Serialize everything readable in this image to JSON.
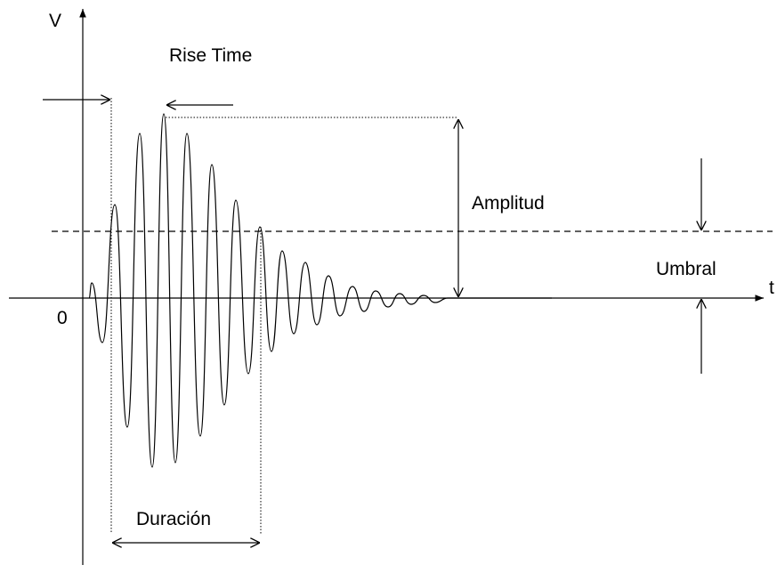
{
  "labels": {
    "v_axis": "V",
    "t_axis": "t",
    "origin": "0",
    "rise_time": "Rise Time",
    "amplitude": "Amplitud",
    "threshold": "Umbral",
    "duration": "Duración"
  }
}
